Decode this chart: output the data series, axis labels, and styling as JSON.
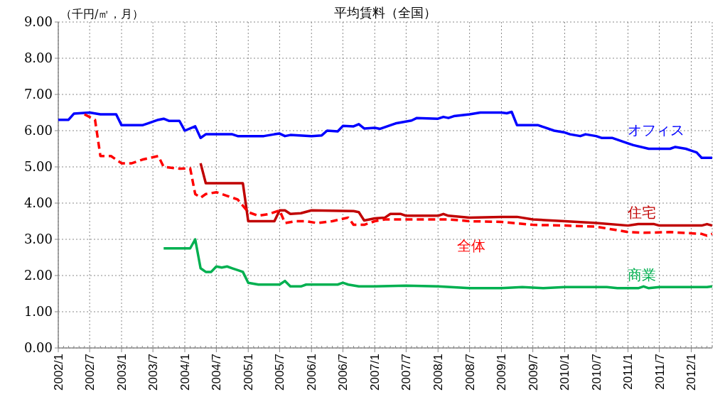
{
  "chart_data": {
    "type": "line",
    "title": "平均賃料（全国）",
    "ylabel": "（千円/㎡，月）",
    "xlim": [
      "2002-01",
      "2012-05"
    ],
    "xticks": [
      {
        "value": "2002-01",
        "label": "2002/1"
      },
      {
        "value": "2002-07",
        "label": "2002/7"
      },
      {
        "value": "2003-01",
        "label": "2003/1"
      },
      {
        "value": "2003-07",
        "label": "2003/7"
      },
      {
        "value": "2004-01",
        "label": "2004/1"
      },
      {
        "value": "2004-07",
        "label": "2004/7"
      },
      {
        "value": "2005-01",
        "label": "2005/1"
      },
      {
        "value": "2005-07",
        "label": "2005/7"
      },
      {
        "value": "2006-01",
        "label": "2006/1"
      },
      {
        "value": "2006-07",
        "label": "2006/7"
      },
      {
        "value": "2007-01",
        "label": "2007/1"
      },
      {
        "value": "2007-07",
        "label": "2007/7"
      },
      {
        "value": "2008-01",
        "label": "2008/1"
      },
      {
        "value": "2008-07",
        "label": "2008/7"
      },
      {
        "value": "2009-01",
        "label": "2009/1"
      },
      {
        "value": "2009-07",
        "label": "2009/7"
      },
      {
        "value": "2010-01",
        "label": "2010/1"
      },
      {
        "value": "2010-07",
        "label": "2010/7"
      },
      {
        "value": "2011-01",
        "label": "2011/1"
      },
      {
        "value": "2011-07",
        "label": "2011/7"
      },
      {
        "value": "2012-01",
        "label": "2012/1"
      }
    ],
    "ylim": [
      0,
      9
    ],
    "yticks": [
      {
        "value": 0,
        "label": "0.00"
      },
      {
        "value": 1,
        "label": "1.00"
      },
      {
        "value": 2,
        "label": "2.00"
      },
      {
        "value": 3,
        "label": "3.00"
      },
      {
        "value": 4,
        "label": "4.00"
      },
      {
        "value": 5,
        "label": "5.00"
      },
      {
        "value": 6,
        "label": "6.00"
      },
      {
        "value": 7,
        "label": "7.00"
      },
      {
        "value": 8,
        "label": "8.00"
      },
      {
        "value": 9,
        "label": "9.00"
      }
    ],
    "grid": true,
    "series": [
      {
        "name": "オフィス",
        "color": "#0000ff",
        "line_style": "solid",
        "x": [
          "2002-01",
          "2002-03",
          "2002-04",
          "2002-07",
          "2002-09",
          "2002-12",
          "2003-01",
          "2003-05",
          "2003-06",
          "2003-08",
          "2003-09",
          "2003-10",
          "2003-12",
          "2004-01",
          "2004-03",
          "2004-04",
          "2004-05",
          "2004-10",
          "2004-11",
          "2005-04",
          "2005-06",
          "2005-07",
          "2005-08",
          "2005-09",
          "2006-01",
          "2006-03",
          "2006-04",
          "2006-06",
          "2006-07",
          "2006-09",
          "2006-10",
          "2006-11",
          "2007-01",
          "2007-02",
          "2007-04",
          "2007-05",
          "2007-08",
          "2007-09",
          "2008-01",
          "2008-02",
          "2008-03",
          "2008-04",
          "2008-07",
          "2008-09",
          "2009-01",
          "2009-02",
          "2009-03",
          "2009-04",
          "2009-08",
          "2009-09",
          "2009-11",
          "2010-01",
          "2010-02",
          "2010-04",
          "2010-05",
          "2010-07",
          "2010-08",
          "2010-10",
          "2011-01",
          "2011-02",
          "2011-05",
          "2011-09",
          "2011-10",
          "2011-12",
          "2012-01",
          "2012-02",
          "2012-03",
          "2012-05"
        ],
        "values": [
          6.3,
          6.3,
          6.47,
          6.5,
          6.45,
          6.45,
          6.15,
          6.15,
          6.2,
          6.3,
          6.33,
          6.27,
          6.27,
          6.0,
          6.12,
          5.8,
          5.9,
          5.9,
          5.85,
          5.85,
          5.9,
          5.92,
          5.85,
          5.88,
          5.85,
          5.87,
          6.0,
          5.98,
          6.13,
          6.12,
          6.18,
          6.06,
          6.08,
          6.05,
          6.15,
          6.2,
          6.28,
          6.35,
          6.33,
          6.38,
          6.35,
          6.4,
          6.45,
          6.5,
          6.5,
          6.48,
          6.52,
          6.15,
          6.15,
          6.1,
          6.0,
          5.95,
          5.9,
          5.85,
          5.9,
          5.85,
          5.8,
          5.8,
          5.65,
          5.6,
          5.5,
          5.5,
          5.55,
          5.5,
          5.45,
          5.4,
          5.25,
          5.25
        ]
      },
      {
        "name": "住宅",
        "color": "#c00000",
        "line_style": "solid",
        "x": [
          "2004-04",
          "2004-05",
          "2004-12",
          "2005-01",
          "2005-06",
          "2005-07",
          "2005-08",
          "2005-09",
          "2005-11",
          "2006-01",
          "2006-09",
          "2006-10",
          "2006-11",
          "2007-01",
          "2007-03",
          "2007-04",
          "2007-06",
          "2007-07",
          "2008-01",
          "2008-02",
          "2008-03",
          "2008-07",
          "2009-01",
          "2009-04",
          "2009-07",
          "2010-01",
          "2010-07",
          "2011-01",
          "2011-02",
          "2011-03",
          "2011-06",
          "2011-07",
          "2012-03",
          "2012-04",
          "2012-05"
        ],
        "values": [
          5.1,
          4.55,
          4.55,
          3.5,
          3.5,
          3.8,
          3.8,
          3.7,
          3.72,
          3.8,
          3.78,
          3.75,
          3.52,
          3.58,
          3.6,
          3.7,
          3.7,
          3.65,
          3.65,
          3.7,
          3.65,
          3.6,
          3.62,
          3.62,
          3.55,
          3.5,
          3.45,
          3.38,
          3.4,
          3.42,
          3.42,
          3.38,
          3.38,
          3.42,
          3.38
        ]
      },
      {
        "name": "全体",
        "color": "#ff0000",
        "line_style": "dashed",
        "x": [
          "2002-06",
          "2002-08",
          "2002-09",
          "2002-11",
          "2003-01",
          "2003-03",
          "2003-05",
          "2003-08",
          "2003-09",
          "2003-12",
          "2004-02",
          "2004-03",
          "2004-04",
          "2004-05",
          "2004-07",
          "2004-09",
          "2004-11",
          "2005-01",
          "2005-03",
          "2005-05",
          "2005-07",
          "2005-08",
          "2005-10",
          "2005-12",
          "2006-02",
          "2006-05",
          "2006-08",
          "2006-09",
          "2006-11",
          "2007-01",
          "2007-03",
          "2007-09",
          "2008-03",
          "2008-07",
          "2009-01",
          "2009-07",
          "2010-01",
          "2010-07",
          "2011-01",
          "2011-04",
          "2011-09",
          "2012-03",
          "2012-04",
          "2012-05"
        ],
        "values": [
          6.45,
          6.3,
          5.3,
          5.3,
          5.1,
          5.1,
          5.2,
          5.3,
          5.0,
          4.95,
          4.96,
          4.25,
          4.15,
          4.25,
          4.3,
          4.2,
          4.1,
          3.75,
          3.65,
          3.7,
          3.8,
          3.45,
          3.5,
          3.5,
          3.45,
          3.5,
          3.6,
          3.4,
          3.4,
          3.5,
          3.55,
          3.55,
          3.55,
          3.5,
          3.48,
          3.4,
          3.38,
          3.35,
          3.2,
          3.18,
          3.2,
          3.15,
          3.1,
          3.15
        ]
      },
      {
        "name": "商業",
        "color": "#00b050",
        "line_style": "solid",
        "x": [
          "2003-09",
          "2004-02",
          "2004-03",
          "2004-04",
          "2004-05",
          "2004-06",
          "2004-07",
          "2004-08",
          "2004-09",
          "2004-10",
          "2004-11",
          "2004-12",
          "2005-01",
          "2005-03",
          "2005-07",
          "2005-08",
          "2005-09",
          "2005-11",
          "2005-12",
          "2006-06",
          "2006-07",
          "2006-08",
          "2006-10",
          "2007-01",
          "2007-07",
          "2008-01",
          "2008-07",
          "2009-01",
          "2009-05",
          "2009-09",
          "2010-01",
          "2010-09",
          "2010-11",
          "2011-03",
          "2011-04",
          "2011-05",
          "2011-07",
          "2012-04",
          "2012-05"
        ],
        "values": [
          2.75,
          2.75,
          3.0,
          2.2,
          2.1,
          2.1,
          2.25,
          2.22,
          2.25,
          2.2,
          2.15,
          2.1,
          1.8,
          1.75,
          1.75,
          1.85,
          1.7,
          1.7,
          1.75,
          1.75,
          1.8,
          1.75,
          1.7,
          1.7,
          1.72,
          1.7,
          1.65,
          1.65,
          1.68,
          1.65,
          1.68,
          1.68,
          1.65,
          1.65,
          1.7,
          1.65,
          1.68,
          1.68,
          1.7
        ]
      }
    ]
  }
}
